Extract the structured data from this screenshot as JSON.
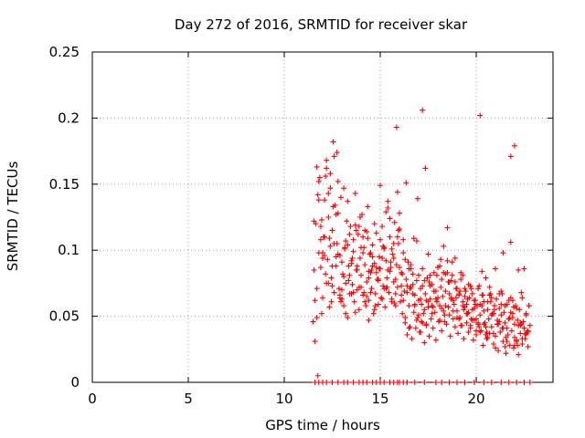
{
  "chart_data": {
    "type": "scatter",
    "title": "Day 272 of 2016, SRMTID for receiver skar",
    "xlabel": "GPS time / hours",
    "ylabel": "SRMTID / TECUs",
    "xlim": [
      0,
      24
    ],
    "ylim": [
      0,
      0.25
    ],
    "xticks": [
      0,
      5,
      10,
      15,
      20
    ],
    "xtick_labels": [
      "0",
      "5",
      "10",
      "15",
      "20"
    ],
    "yticks": [
      0,
      0.05,
      0.1,
      0.15,
      0.2,
      0.25
    ],
    "ytick_labels": [
      "0",
      "0.05",
      "0.1",
      "0.15",
      "0.2",
      "0.25"
    ],
    "grid": true,
    "marker": "+",
    "series": [
      {
        "name": "SRMTID",
        "color": "#ff0000",
        "x": [
          11.5,
          11.55,
          11.6,
          11.65,
          11.7,
          11.75,
          11.8,
          11.85,
          11.9,
          11.95,
          12.0,
          12.05,
          12.1,
          12.15,
          12.2,
          12.25,
          12.3,
          12.35,
          12.4,
          12.45,
          12.5,
          12.55,
          12.6,
          12.65,
          12.7,
          12.75,
          12.8,
          12.85,
          12.9,
          12.95,
          13.0,
          13.05,
          13.1,
          13.15,
          13.2,
          13.25,
          13.3,
          13.35,
          13.4,
          13.45,
          13.5,
          13.55,
          13.6,
          13.65,
          13.7,
          13.75,
          13.8,
          13.85,
          13.9,
          13.95,
          14.0,
          14.05,
          14.1,
          14.15,
          14.2,
          14.25,
          14.3,
          14.35,
          14.4,
          14.45,
          14.5,
          14.55,
          14.6,
          14.65,
          14.7,
          14.75,
          14.8,
          14.85,
          14.9,
          14.95,
          15.0,
          15.05,
          15.1,
          15.15,
          15.2,
          15.25,
          15.3,
          15.35,
          15.4,
          15.45,
          15.5,
          15.55,
          15.6,
          15.65,
          15.7,
          15.75,
          15.8,
          15.85,
          15.9,
          15.95,
          16.0,
          16.05,
          16.1,
          16.15,
          16.2,
          16.25,
          16.3,
          16.35,
          16.4,
          16.45,
          16.5,
          16.55,
          16.6,
          16.65,
          16.7,
          16.75,
          16.8,
          16.85,
          16.9,
          16.95,
          17.0,
          17.05,
          17.1,
          17.15,
          17.2,
          17.25,
          17.3,
          17.35,
          17.4,
          17.45,
          17.5,
          17.55,
          17.6,
          17.65,
          17.7,
          17.75,
          17.8,
          17.85,
          17.9,
          17.95,
          18.0,
          18.05,
          18.1,
          18.15,
          18.2,
          18.25,
          18.3,
          18.35,
          18.4,
          18.45,
          18.5,
          18.55,
          18.6,
          18.65,
          18.7,
          18.75,
          18.8,
          18.85,
          18.9,
          18.95,
          19.0,
          19.05,
          19.1,
          19.15,
          19.2,
          19.25,
          19.3,
          19.35,
          19.4,
          19.45,
          19.5,
          19.55,
          19.6,
          19.65,
          19.7,
          19.75,
          19.8,
          19.85,
          19.9,
          19.95,
          20.0,
          20.05,
          20.1,
          20.15,
          20.2,
          20.25,
          20.3,
          20.35,
          20.4,
          20.45,
          20.5,
          20.55,
          20.6,
          20.65,
          20.7,
          20.75,
          20.8,
          20.85,
          20.9,
          20.95,
          21.0,
          21.05,
          21.1,
          21.15,
          21.2,
          21.25,
          21.3,
          21.35,
          21.4,
          21.45,
          21.5,
          21.55,
          21.6,
          21.65,
          21.7,
          21.75,
          21.8,
          21.85,
          21.9,
          21.95,
          22.0,
          22.05,
          22.1,
          22.15,
          22.2,
          22.25,
          22.3,
          22.35,
          22.4,
          22.45,
          22.5,
          22.55,
          22.6,
          22.65,
          22.7,
          22.75,
          22.8,
          11.6,
          11.7,
          11.8,
          11.9,
          12.0,
          12.1,
          12.2,
          12.3,
          12.4,
          12.5,
          12.6,
          12.7,
          12.8,
          12.9,
          13.0,
          13.1,
          13.2,
          13.3,
          13.4,
          13.5,
          13.6,
          13.7,
          13.8,
          13.9,
          14.0,
          14.1,
          14.2,
          14.3,
          14.4,
          14.5,
          14.6,
          14.7,
          14.8,
          14.9,
          15.0,
          15.1,
          15.2,
          15.3,
          15.4,
          15.5,
          15.6,
          15.7,
          15.8,
          15.9,
          16.0,
          16.1,
          16.2,
          16.3,
          16.4,
          16.5,
          16.6,
          16.7,
          16.8,
          16.9,
          17.0,
          17.1,
          17.2,
          17.3,
          17.4,
          17.5,
          17.6,
          17.7,
          17.8,
          17.9,
          18.0,
          18.1,
          18.2,
          18.3,
          18.4,
          18.5,
          18.6,
          18.7,
          18.8,
          18.9,
          19.0,
          19.1,
          19.2,
          19.3,
          19.4,
          19.5,
          19.6,
          19.7,
          19.8,
          19.9,
          20.0,
          20.1,
          20.2,
          20.3,
          20.4,
          20.5,
          20.6,
          20.7,
          20.8,
          20.9,
          21.0,
          21.1,
          21.2,
          21.3,
          21.4,
          21.5,
          21.6,
          21.7,
          21.8,
          21.9,
          22.0,
          22.1,
          22.2,
          22.3,
          22.4,
          22.5,
          22.6,
          22.7,
          12.45,
          14.4,
          15.85,
          17.2,
          20.2,
          22.0,
          21.8,
          11.55,
          11.75,
          11.95,
          12.15,
          12.35,
          12.55,
          12.75,
          12.95,
          13.15,
          13.35,
          13.55,
          13.75,
          13.95,
          14.15,
          14.35,
          14.55,
          14.75,
          14.95,
          15.15,
          15.35,
          15.55,
          15.75,
          15.95,
          16.15,
          16.35,
          16.55,
          16.75,
          16.95,
          17.15,
          17.35,
          17.55,
          17.75,
          17.95,
          18.15,
          18.35,
          18.55,
          18.75,
          18.95,
          19.15,
          19.35,
          19.55,
          19.75,
          19.95,
          20.15,
          20.35,
          20.55,
          20.75,
          20.95,
          21.15,
          21.35,
          21.55,
          21.75,
          21.95,
          22.15,
          22.35,
          22.55,
          22.75,
          11.7,
          11.9,
          12.1,
          12.3,
          12.5,
          12.7,
          12.9,
          13.1,
          13.3,
          13.5,
          13.7,
          13.9,
          14.1,
          14.3,
          14.5,
          14.7,
          14.9,
          15.1,
          15.3,
          15.5,
          15.7,
          15.9,
          16.1,
          16.3,
          16.5,
          16.7,
          16.9,
          17.1,
          17.3,
          17.5,
          17.7,
          17.9,
          18.1,
          18.3,
          18.5,
          18.7,
          18.9,
          19.1,
          19.3,
          19.5,
          19.7,
          19.9,
          20.1,
          20.3,
          20.5,
          20.7,
          20.9,
          21.1,
          21.3,
          21.5,
          21.7,
          21.9,
          22.1,
          22.3,
          22.5,
          22.7,
          11.8,
          12.0,
          12.2,
          12.4,
          12.6,
          12.8,
          13.0,
          13.2,
          13.4,
          13.6,
          13.8,
          14.0,
          14.2,
          14.4,
          14.6,
          14.8,
          15.0,
          15.2,
          15.4,
          15.6,
          15.8,
          16.0,
          16.2,
          16.4,
          16.6,
          16.8,
          17.0,
          17.2,
          17.4,
          17.6,
          17.8,
          18.0,
          18.2,
          18.4,
          18.6,
          18.8,
          19.0,
          19.2,
          19.4,
          19.6,
          19.8,
          20.0,
          20.2,
          20.4,
          20.6,
          20.8,
          21.0,
          21.2,
          21.4,
          21.6,
          21.8,
          22.0,
          22.2,
          22.4,
          22.6,
          11.6,
          11.8,
          12.0,
          12.2,
          12.5,
          12.8,
          13.1,
          13.3,
          13.6,
          13.9,
          14.1,
          14.3,
          14.6,
          14.8,
          15.0,
          15.2,
          15.5,
          15.7,
          15.9,
          16.0,
          16.2,
          16.4,
          16.8,
          17.3,
          17.9,
          18.2,
          18.6,
          19.0,
          19.4,
          19.9,
          20.4,
          20.8,
          21.3,
          21.7,
          22.1,
          22.5,
          22.8
        ],
        "y": [
          0.046,
          0.085,
          0.062,
          0.12,
          0.071,
          0.142,
          0.098,
          0.155,
          0.087,
          0.123,
          0.064,
          0.11,
          0.138,
          0.082,
          0.168,
          0.093,
          0.125,
          0.057,
          0.147,
          0.079,
          0.115,
          0.182,
          0.068,
          0.134,
          0.088,
          0.105,
          0.152,
          0.071,
          0.096,
          0.14,
          0.063,
          0.082,
          0.058,
          0.101,
          0.075,
          0.122,
          0.049,
          0.088,
          0.067,
          0.118,
          0.092,
          0.074,
          0.099,
          0.061,
          0.143,
          0.085,
          0.07,
          0.112,
          0.055,
          0.094,
          0.081,
          0.127,
          0.066,
          0.102,
          0.089,
          0.058,
          0.076,
          0.109,
          0.062,
          0.097,
          0.083,
          0.071,
          0.104,
          0.052,
          0.09,
          0.067,
          0.113,
          0.078,
          0.059,
          0.095,
          0.086,
          0.064,
          0.118,
          0.073,
          0.101,
          0.057,
          0.092,
          0.079,
          0.132,
          0.068,
          0.11,
          0.087,
          0.063,
          0.097,
          0.076,
          0.121,
          0.058,
          0.089,
          0.072,
          0.105,
          0.116,
          0.061,
          0.083,
          0.052,
          0.098,
          0.069,
          0.045,
          0.078,
          0.036,
          0.091,
          0.058,
          0.042,
          0.072,
          0.033,
          0.082,
          0.053,
          0.066,
          0.041,
          0.077,
          0.049,
          0.062,
          0.038,
          0.071,
          0.046,
          0.086,
          0.052,
          0.03,
          0.067,
          0.044,
          0.079,
          0.057,
          0.035,
          0.063,
          0.048,
          0.074,
          0.041,
          0.069,
          0.053,
          0.032,
          0.061,
          0.087,
          0.046,
          0.058,
          0.072,
          0.039,
          0.065,
          0.083,
          0.051,
          0.069,
          0.044,
          0.092,
          0.057,
          0.076,
          0.035,
          0.063,
          0.081,
          0.048,
          0.059,
          0.042,
          0.071,
          0.054,
          0.037,
          0.066,
          0.049,
          0.078,
          0.043,
          0.061,
          0.033,
          0.057,
          0.069,
          0.045,
          0.052,
          0.038,
          0.064,
          0.041,
          0.071,
          0.055,
          0.032,
          0.047,
          0.062,
          0.036,
          0.058,
          0.044,
          0.073,
          0.051,
          0.039,
          0.066,
          0.028,
          0.054,
          0.045,
          0.079,
          0.033,
          0.061,
          0.048,
          0.037,
          0.067,
          0.042,
          0.052,
          0.029,
          0.058,
          0.035,
          0.063,
          0.047,
          0.024,
          0.056,
          0.038,
          0.069,
          0.041,
          0.031,
          0.053,
          0.045,
          0.022,
          0.059,
          0.036,
          0.048,
          0.028,
          0.064,
          0.039,
          0.052,
          0.026,
          0.044,
          0.058,
          0.032,
          0.047,
          0.021,
          0.055,
          0.037,
          0.068,
          0.029,
          0.046,
          0.041,
          0.033,
          0.051,
          0.038,
          0.027,
          0.058,
          0.043,
          0.031,
          0.049,
          0.152,
          0.108,
          0.098,
          0.11,
          0.162,
          0.075,
          0.103,
          0.088,
          0.171,
          0.095,
          0.128,
          0.066,
          0.091,
          0.147,
          0.052,
          0.137,
          0.081,
          0.067,
          0.108,
          0.053,
          0.088,
          0.118,
          0.072,
          0.098,
          0.061,
          0.114,
          0.084,
          0.068,
          0.095,
          0.055,
          0.087,
          0.077,
          0.149,
          0.063,
          0.102,
          0.071,
          0.085,
          0.124,
          0.061,
          0.094,
          0.078,
          0.144,
          0.087,
          0.066,
          0.108,
          0.049,
          0.068,
          0.041,
          0.086,
          0.067,
          0.059,
          0.047,
          0.081,
          0.038,
          0.073,
          0.055,
          0.043,
          0.061,
          0.081,
          0.052,
          0.069,
          0.063,
          0.087,
          0.047,
          0.078,
          0.103,
          0.058,
          0.083,
          0.051,
          0.077,
          0.062,
          0.094,
          0.071,
          0.048,
          0.083,
          0.058,
          0.065,
          0.052,
          0.074,
          0.043,
          0.067,
          0.056,
          0.048,
          0.071,
          0.038,
          0.084,
          0.061,
          0.042,
          0.055,
          0.072,
          0.064,
          0.037,
          0.086,
          0.044,
          0.067,
          0.051,
          0.098,
          0.058,
          0.041,
          0.062,
          0.106,
          0.049,
          0.034,
          0.056,
          0.085,
          0.043,
          0.064,
          0.086,
          0.052,
          0.038,
          0.061,
          0.047,
          0.193,
          0.206,
          0.202,
          0.179,
          0.171,
          0.122,
          0.005,
          0.052,
          0.156,
          0.109,
          0.133,
          0.174,
          0.061,
          0.102,
          0.077,
          0.094,
          0.115,
          0.125,
          0.068,
          0.133,
          0.085,
          0.058,
          0.086,
          0.103,
          0.072,
          0.091,
          0.06,
          0.115,
          0.082,
          0.151,
          0.071,
          0.109,
          0.139,
          0.059,
          0.162,
          0.076,
          0.057,
          0.081,
          0.093,
          0.046,
          0.076,
          0.091,
          0.064,
          0.069,
          0.055,
          0.063,
          0.048,
          0.059,
          0.042,
          0.066,
          0.038,
          0.061,
          0.055,
          0.044,
          0.067,
          0.034,
          0.049,
          0.057,
          0.028,
          0.044,
          0.036,
          0.058,
          0.163,
          0.118,
          0.096,
          0.143,
          0.073,
          0.127,
          0.064,
          0.08,
          0.104,
          0.09,
          0.119,
          0.072,
          0.11,
          0.065,
          0.098,
          0.12,
          0.078,
          0.094,
          0.129,
          0.084,
          0.105,
          0.11,
          0.073,
          0.093,
          0.086,
          0.074,
          0.107,
          0.063,
          0.077,
          0.097,
          0.058,
          0.069,
          0.088,
          0.054,
          0.117,
          0.064,
          0.076,
          0.067,
          0.081,
          0.059,
          0.073,
          0.062,
          0.045,
          0.058,
          0.036,
          0.066,
          0.052,
          0.044,
          0.059,
          0.027,
          0.048,
          0.062,
          0.031,
          0.045,
          0.041,
          0.039,
          0.138,
          0.094,
          0.075,
          0.158,
          0.105,
          0.097,
          0.07,
          0.107,
          0.112,
          0.068,
          0.085,
          0.102,
          0.115,
          0.079,
          0.088,
          0.083,
          0.108,
          0.071,
          0.137,
          0.101,
          0.067,
          0.128,
          0.062,
          0.073,
          0.089,
          0.058,
          0.051,
          0.045,
          0.062,
          0.073,
          0.083,
          0.064,
          0.056,
          0.082,
          0.067,
          0.054,
          0.049,
          0.043,
          0.071,
          0.053,
          0.047,
          0.039,
          0.059,
          0.044,
          0.034,
          0.051,
          0.026,
          0.046,
          0.041,
          0.031,
          0.053,
          0.028,
          0.043,
          0.033,
          0.037,
          0.0,
          0.0,
          0.0,
          0.0,
          0.0,
          0.0,
          0.0,
          0.0,
          0.0,
          0.0,
          0.0,
          0.0,
          0.0,
          0.0,
          0.0,
          0.0,
          0.0,
          0.0,
          0.0,
          0.0,
          0.0,
          0.0,
          0.0,
          0.0,
          0.0,
          0.0,
          0.0,
          0.0,
          0.0,
          0.0,
          0.0,
          0.0,
          0.0,
          0.0,
          0.0,
          0.0,
          0.0
        ]
      }
    ]
  }
}
